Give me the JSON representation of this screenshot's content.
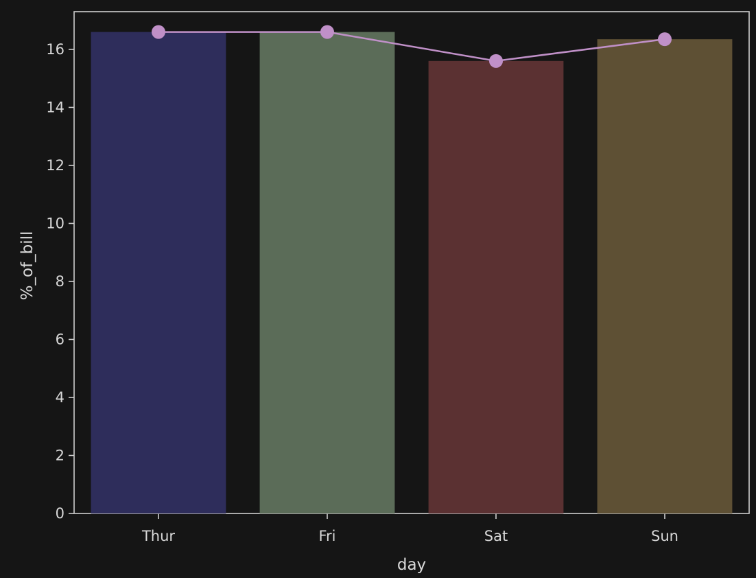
{
  "chart_data": {
    "type": "bar",
    "categories": [
      "Thur",
      "Fri",
      "Sat",
      "Sun"
    ],
    "values": [
      16.6,
      16.6,
      15.6,
      16.35
    ],
    "line_values": [
      16.6,
      16.6,
      15.6,
      16.35
    ],
    "bar_colors": [
      "#2e2d5b",
      "#5b6c58",
      "#5b3132",
      "#5e5034"
    ],
    "line_color": "#c090c8",
    "xlabel": "day",
    "ylabel": "%_of_bill",
    "ylim": [
      0,
      17.3
    ],
    "yticks": [
      0,
      2,
      4,
      6,
      8,
      10,
      12,
      14,
      16
    ],
    "grid": false
  }
}
